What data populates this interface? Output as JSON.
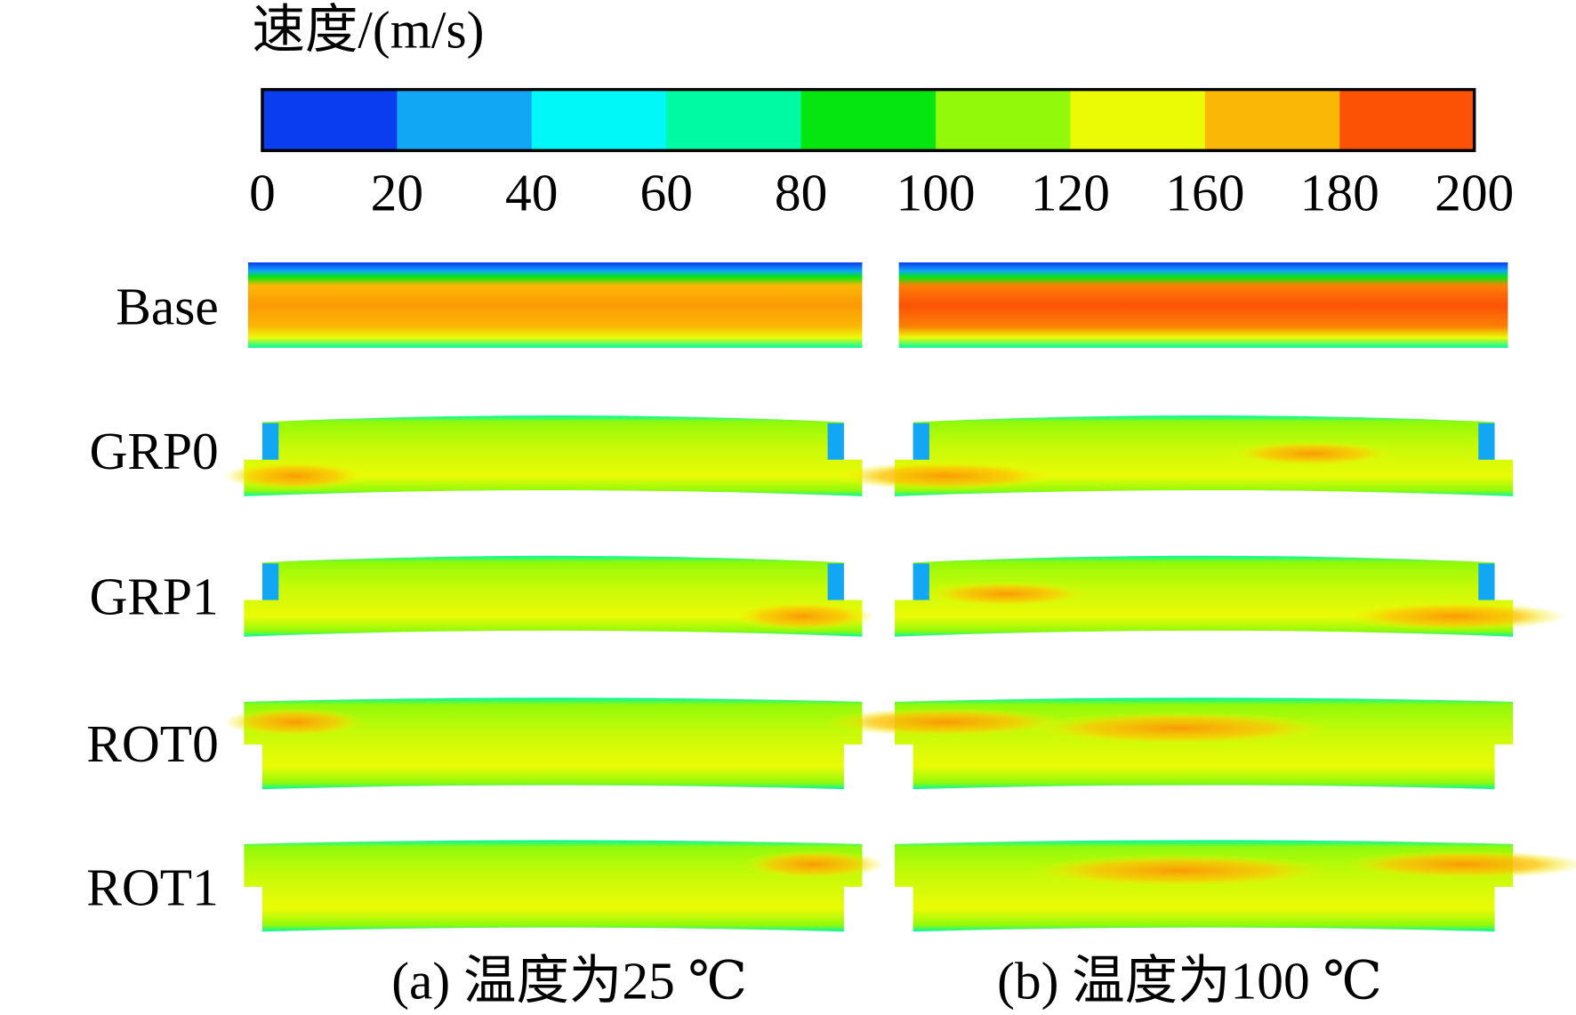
{
  "legend": {
    "title": "速度/(m/s)",
    "colors": [
      "#0a3cf0",
      "#11a7f5",
      "#00f8f8",
      "#00f9a3",
      "#05e610",
      "#93f90a",
      "#ebfb06",
      "#fbb705",
      "#fb5206"
    ],
    "ticks": [
      "0",
      "20",
      "40",
      "60",
      "80",
      "100",
      "120",
      "160",
      "180",
      "200"
    ]
  },
  "rows": [
    "Base",
    "GRP0",
    "GRP1",
    "ROT0",
    "ROT1"
  ],
  "captions": [
    "(a) 温度为25 ℃",
    "(b) 温度为100 ℃"
  ]
}
